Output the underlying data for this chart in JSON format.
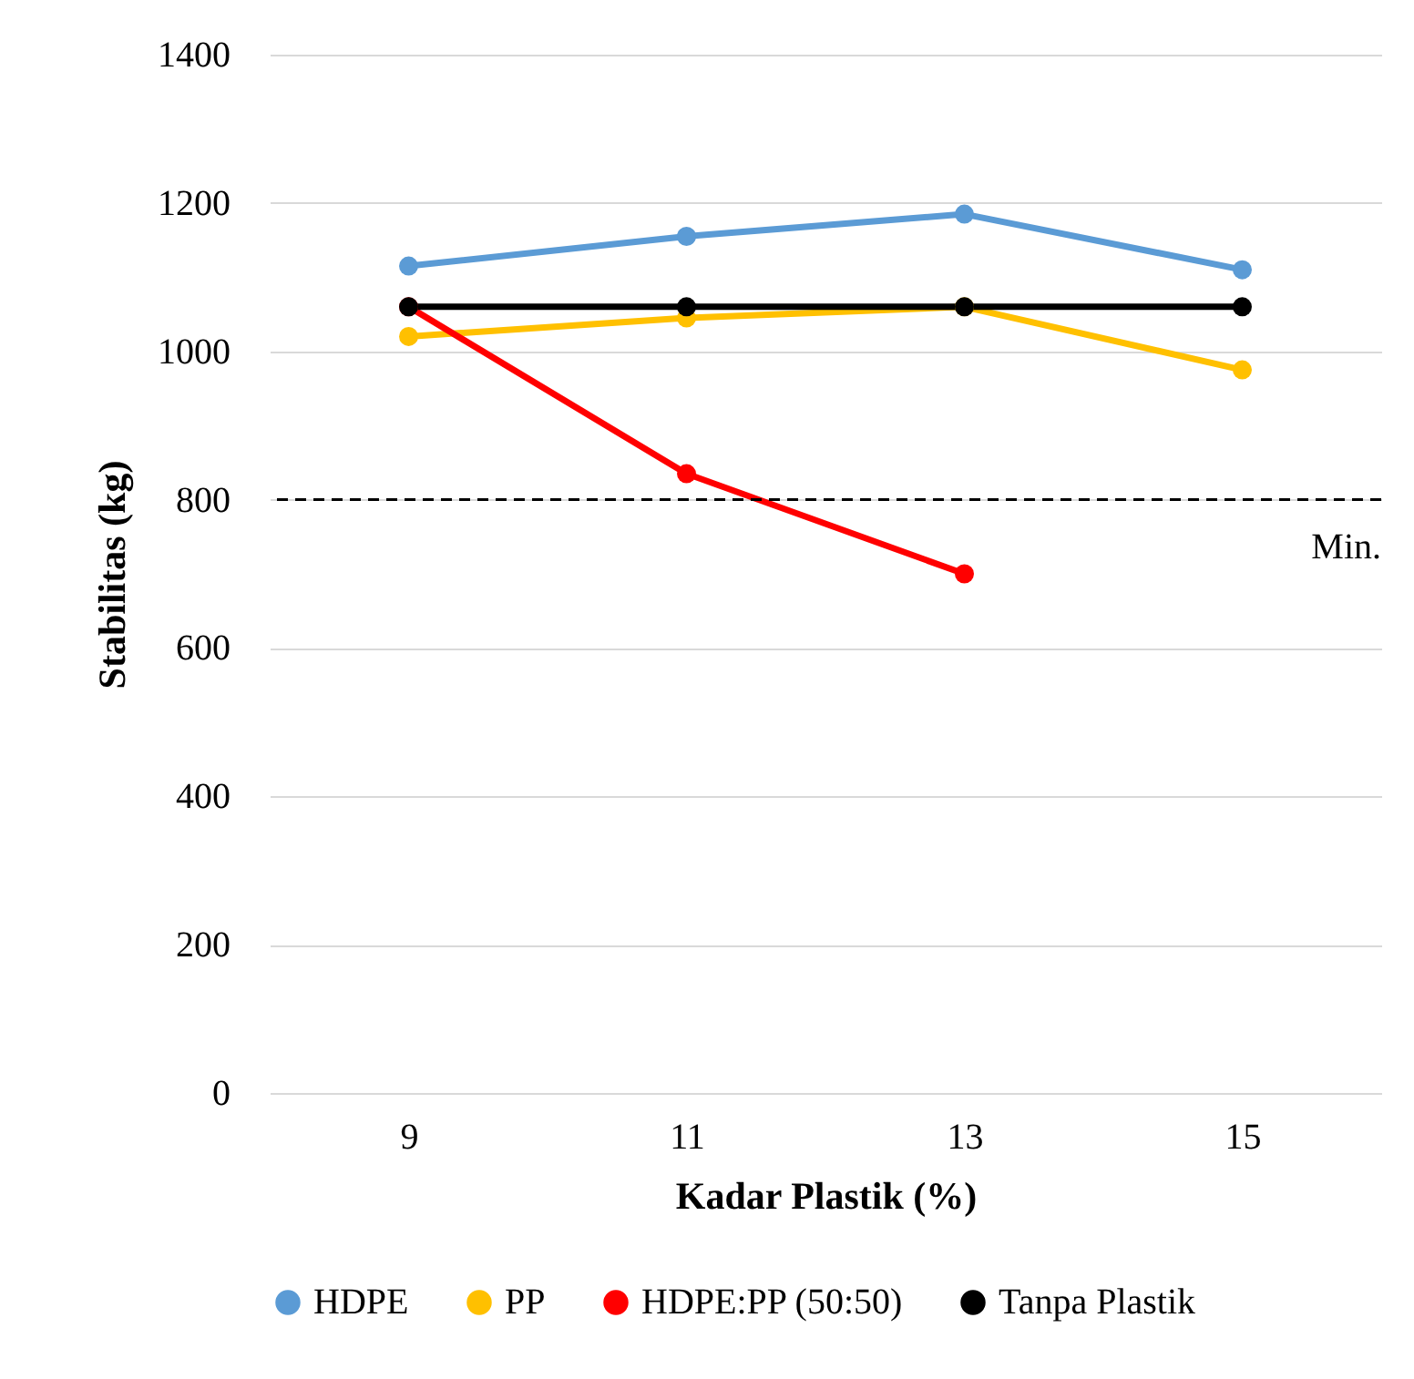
{
  "chart_data": {
    "type": "line",
    "xlabel": "Kadar Plastik (%)",
    "ylabel": "Stabilitas (kg)",
    "categories": [
      "9",
      "11",
      "13",
      "15"
    ],
    "series": [
      {
        "name": "HDPE",
        "color": "#5b9bd5",
        "values": [
          1115,
          1155,
          1185,
          1110
        ]
      },
      {
        "name": "PP",
        "color": "#ffc000",
        "values": [
          1020,
          1045,
          1060,
          975
        ]
      },
      {
        "name": "HDPE:PP (50:50)",
        "color": "#ff0000",
        "values": [
          1060,
          835,
          700,
          null
        ]
      },
      {
        "name": "Tanpa Plastik",
        "color": "#000000",
        "values": [
          1060,
          1060,
          1060,
          1060
        ]
      }
    ],
    "ylim": [
      0,
      1400
    ],
    "yticks": [
      0,
      200,
      400,
      600,
      800,
      1000,
      1200,
      1400
    ],
    "ref_lines": [
      {
        "axis": "y",
        "value": 800,
        "label": "Min.",
        "color": "#000000",
        "line_style": "dashed"
      }
    ],
    "grid": "y",
    "legend": "bottom",
    "marker": "circle"
  }
}
